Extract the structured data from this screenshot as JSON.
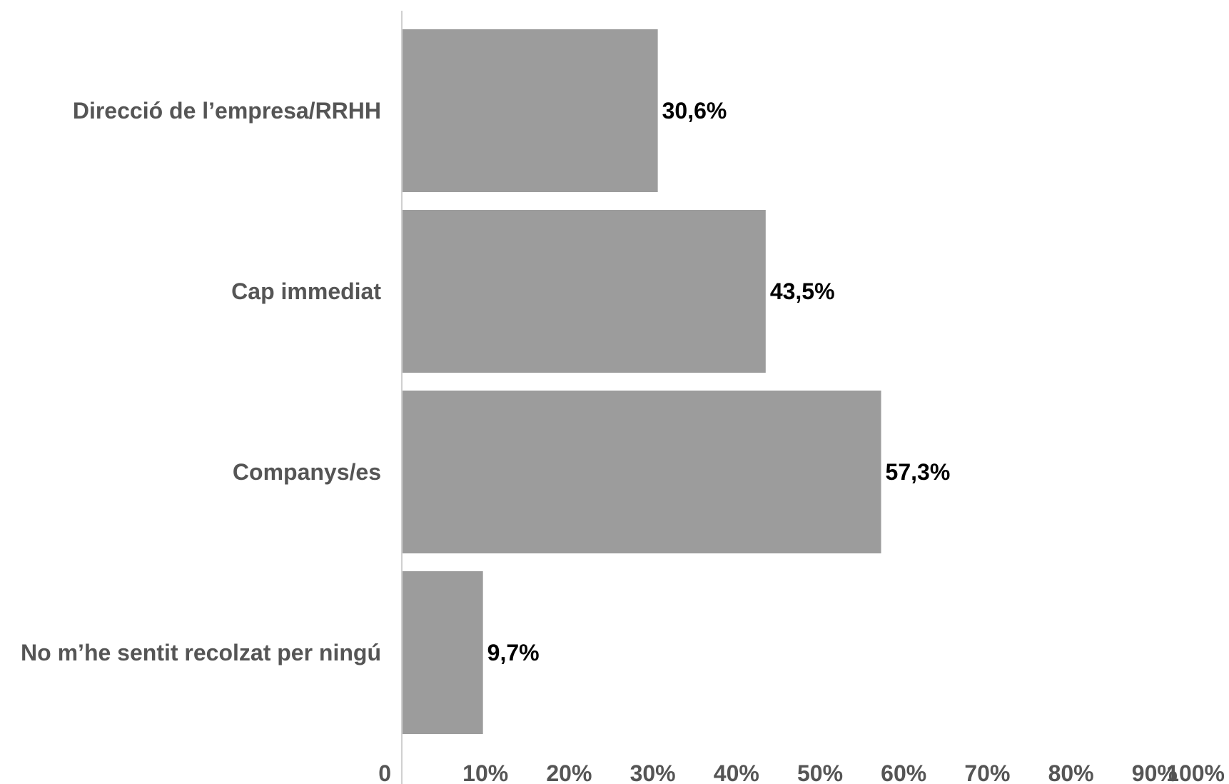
{
  "chart_data": {
    "type": "bar",
    "orientation": "horizontal",
    "categories": [
      "Direcció de l’empresa/RRHH",
      "Cap immediat",
      "Companys/es",
      "No m’he sentit recolzat per ningú"
    ],
    "values": [
      30.6,
      43.5,
      57.3,
      9.7
    ],
    "value_labels": [
      "30,6%",
      "43,5%",
      "57,3%",
      "9,7%"
    ],
    "x_ticks": [
      "0",
      "10%",
      "20%",
      "30%",
      "40%",
      "50%",
      "60%",
      "70%",
      "80%",
      "90%",
      "100%"
    ],
    "title": "",
    "xlabel": "",
    "ylabel": "",
    "grid": false,
    "bar_color": "#9c9c9c",
    "axis_color": "#d0d0d0"
  }
}
